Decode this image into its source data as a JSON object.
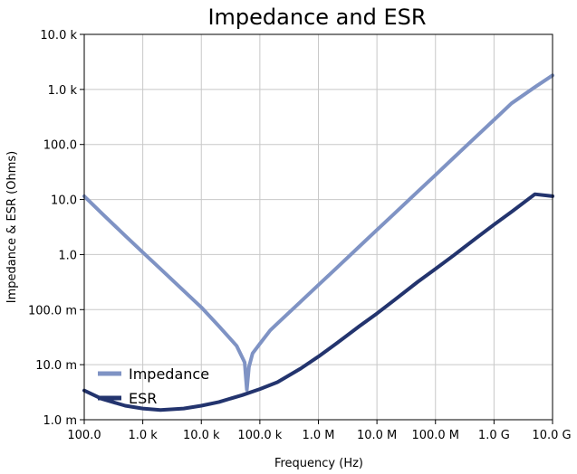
{
  "chart_data": {
    "type": "line",
    "title": "Impedance and ESR",
    "xlabel": "Frequency (Hz)",
    "ylabel": "Impedance & ESR (Ohms)",
    "x_scale": "log",
    "y_scale": "log",
    "xlim": [
      100,
      10000000000
    ],
    "ylim": [
      0.001,
      10000
    ],
    "x_ticks": [
      {
        "value": 100,
        "label": "100.0"
      },
      {
        "value": 1000,
        "label": "1.0 k"
      },
      {
        "value": 10000,
        "label": "10.0 k"
      },
      {
        "value": 100000,
        "label": "100.0 k"
      },
      {
        "value": 1000000,
        "label": "1.0 M"
      },
      {
        "value": 10000000,
        "label": "10.0 M"
      },
      {
        "value": 100000000,
        "label": "100.0 M"
      },
      {
        "value": 1000000000,
        "label": "1.0 G"
      },
      {
        "value": 10000000000,
        "label": "10.0 G"
      }
    ],
    "y_ticks": [
      {
        "value": 0.001,
        "label": "1.0 m"
      },
      {
        "value": 0.01,
        "label": "10.0 m"
      },
      {
        "value": 0.1,
        "label": "100.0 m"
      },
      {
        "value": 1,
        "label": "1.0"
      },
      {
        "value": 10,
        "label": "10.0"
      },
      {
        "value": 100,
        "label": "100.0"
      },
      {
        "value": 1000,
        "label": "1.0 k"
      },
      {
        "value": 10000,
        "label": "10.0 k"
      }
    ],
    "grid": true,
    "legend_position": "bottom-left",
    "series": [
      {
        "name": "Impedance",
        "color": "#7f93c4",
        "x": [
          100,
          200,
          500,
          1000,
          2000,
          5000,
          10000,
          20000,
          40000,
          55000,
          60000,
          65000,
          75000,
          100000,
          150000,
          200000,
          500000,
          1000000,
          2000000,
          5000000,
          10000000,
          20000000,
          50000000,
          100000000,
          200000000,
          500000000,
          1000000000,
          2000000000,
          5000000000,
          10000000000
        ],
        "y": [
          11.5,
          5.6,
          2.2,
          1.1,
          0.55,
          0.22,
          0.11,
          0.05,
          0.022,
          0.011,
          0.0035,
          0.009,
          0.016,
          0.024,
          0.042,
          0.056,
          0.14,
          0.28,
          0.56,
          1.4,
          2.8,
          5.6,
          14,
          28,
          56,
          140,
          280,
          560,
          1100,
          1800
        ]
      },
      {
        "name": "ESR",
        "color": "#23346e",
        "x": [
          100,
          200,
          500,
          1000,
          2000,
          5000,
          10000,
          20000,
          50000,
          100000,
          200000,
          500000,
          1000000,
          2000000,
          5000000,
          10000000,
          20000000,
          50000000,
          100000000,
          200000000,
          500000000,
          1000000000,
          2000000000,
          5000000000,
          10000000000
        ],
        "y": [
          0.0034,
          0.0024,
          0.0018,
          0.0016,
          0.0015,
          0.0016,
          0.0018,
          0.0021,
          0.0028,
          0.0036,
          0.0048,
          0.0085,
          0.014,
          0.024,
          0.05,
          0.085,
          0.15,
          0.32,
          0.55,
          0.95,
          2.0,
          3.5,
          6.0,
          12.5,
          11.5
        ]
      }
    ]
  }
}
